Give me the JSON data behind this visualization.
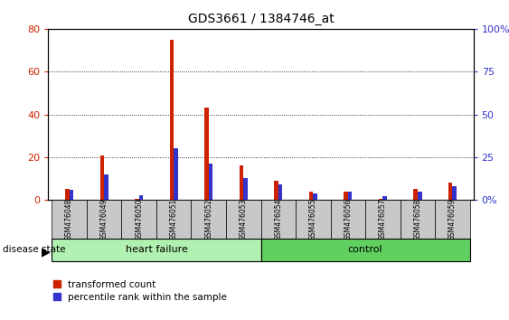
{
  "title": "GDS3661 / 1384746_at",
  "samples": [
    "GSM476048",
    "GSM476049",
    "GSM476050",
    "GSM476051",
    "GSM476052",
    "GSM476053",
    "GSM476054",
    "GSM476055",
    "GSM476056",
    "GSM476057",
    "GSM476058",
    "GSM476059"
  ],
  "red_values": [
    5,
    21,
    0.5,
    75,
    43,
    16,
    9,
    4,
    4,
    0.5,
    5,
    8
  ],
  "blue_values_left": [
    6,
    15,
    3,
    30,
    21,
    13,
    9,
    4,
    5,
    2,
    5,
    8
  ],
  "ylim_left": [
    0,
    80
  ],
  "ylim_right": [
    0,
    100
  ],
  "yticks_left": [
    0,
    20,
    40,
    60,
    80
  ],
  "yticks_right": [
    0,
    25,
    50,
    75,
    100
  ],
  "ytick_labels_left": [
    "0",
    "20",
    "40",
    "60",
    "80"
  ],
  "ytick_labels_right": [
    "0%",
    "25",
    "50",
    "75",
    "100%"
  ],
  "red_color": "#CC2200",
  "blue_color": "#3333CC",
  "bar_width": 0.12,
  "bar_gap": 0.12,
  "background_color": "#ffffff",
  "tick_area_color": "#c8c8c8",
  "group_label_disease": "disease state",
  "legend_red": "transformed count",
  "legend_blue": "percentile rank within the sample",
  "heart_failure_color": "#b0f0b0",
  "control_color": "#60d060"
}
